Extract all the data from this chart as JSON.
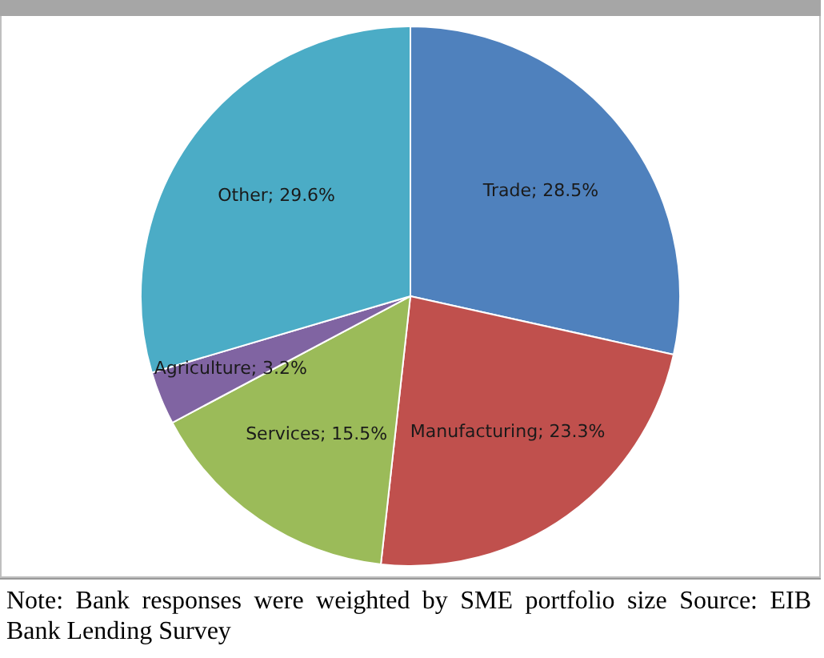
{
  "chart_data": {
    "type": "pie",
    "categories": [
      "Trade",
      "Manufacturing",
      "Services",
      "Agriculture",
      "Other"
    ],
    "value_labels": [
      "28.5%",
      "23.3%",
      "15.5%",
      "3.2%",
      "29.6%"
    ],
    "values": [
      28.5,
      23.3,
      15.5,
      3.2,
      29.6
    ],
    "colors": [
      "#4f81bd",
      "#c0504d",
      "#9bbb59",
      "#8064a2",
      "#4bacc6"
    ],
    "legend": false,
    "annotations": [
      "Note: Bank responses were weighted by SME portfolio size Source: EIB Bank Lending Survey"
    ]
  }
}
